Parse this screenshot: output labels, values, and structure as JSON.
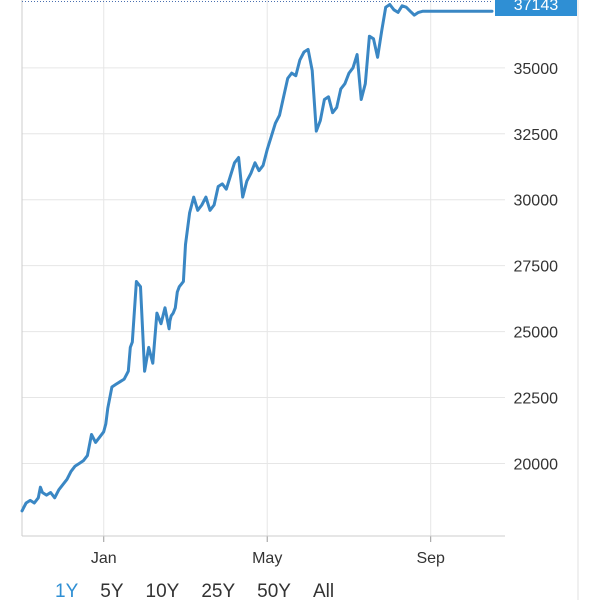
{
  "colors": {
    "line": "#3a87c4",
    "grid": "#e6e6e6",
    "badge": "#2f8fd4",
    "active": "#2f8fd4",
    "text": "#333333"
  },
  "range_buttons": [
    {
      "label": "1Y",
      "active": true
    },
    {
      "label": "5Y",
      "active": false
    },
    {
      "label": "10Y",
      "active": false
    },
    {
      "label": "25Y",
      "active": false
    },
    {
      "label": "50Y",
      "active": false
    },
    {
      "label": "All",
      "active": false
    }
  ],
  "chart_data": {
    "type": "line",
    "title": "",
    "xlabel": "",
    "ylabel": "",
    "grid": true,
    "legend": "none",
    "y_axis_side": "right",
    "ylim": [
      17250,
      37420
    ],
    "xlim": [
      0,
      11.5
    ],
    "y_ticks": [
      20000,
      22500,
      25000,
      27500,
      30000,
      32500,
      35000
    ],
    "x_ticks": [
      {
        "label": "Jan",
        "x": 2
      },
      {
        "label": "May",
        "x": 6
      },
      {
        "label": "Sep",
        "x": 10
      }
    ],
    "last_value_label": "37143",
    "series": [
      {
        "x": [
          0.0,
          0.1,
          0.2,
          0.3,
          0.4,
          0.45,
          0.5,
          0.6,
          0.7,
          0.8,
          0.9,
          1.0,
          1.1,
          1.2,
          1.3,
          1.4,
          1.5,
          1.6,
          1.7,
          1.8,
          1.9,
          2.0,
          2.05,
          2.1,
          2.2,
          2.3,
          2.4,
          2.5,
          2.6,
          2.65,
          2.7,
          2.8,
          2.9,
          3.0,
          3.1,
          3.2,
          3.3,
          3.4,
          3.5,
          3.6,
          3.62,
          3.65,
          3.7,
          3.75,
          3.8,
          3.85,
          3.9,
          3.95,
          4.0,
          4.1,
          4.2,
          4.3,
          4.4,
          4.5,
          4.6,
          4.7,
          4.8,
          4.9,
          5.0,
          5.1,
          5.2,
          5.3,
          5.4,
          5.5,
          5.6,
          5.7,
          5.8,
          5.9,
          6.0,
          6.1,
          6.2,
          6.3,
          6.4,
          6.5,
          6.6,
          6.7,
          6.8,
          6.9,
          7.0,
          7.1,
          7.2,
          7.3,
          7.4,
          7.5,
          7.6,
          7.7,
          7.8,
          7.9,
          8.0,
          8.1,
          8.2,
          8.3,
          8.4,
          8.5,
          8.6,
          8.7,
          8.8,
          8.9,
          9.0,
          9.1,
          9.2,
          9.3,
          9.4,
          9.5,
          9.6,
          9.7,
          9.8,
          9.9,
          10.0,
          10.1,
          10.2,
          10.3,
          10.4,
          10.5,
          10.6,
          10.7,
          10.8,
          10.85,
          10.9,
          11.0,
          11.1,
          11.2,
          11.25,
          11.3,
          11.4,
          11.5
        ],
        "values": [
          18200,
          18500,
          18600,
          18500,
          18700,
          19100,
          18900,
          18800,
          18900,
          18700,
          19000,
          19200,
          19400,
          19700,
          19900,
          20000,
          20100,
          20300,
          21100,
          20800,
          21000,
          21200,
          21500,
          22100,
          22900,
          23000,
          23100,
          23200,
          23500,
          24400,
          24600,
          26900,
          26700,
          23500,
          24400,
          23800,
          25700,
          25300,
          25900,
          25100,
          25400,
          25600,
          25700,
          25900,
          26500,
          26700,
          26800,
          26900,
          28300,
          29500,
          30100,
          29600,
          29800,
          30100,
          29600,
          29800,
          30500,
          30600,
          30400,
          30900,
          31400,
          31600,
          30100,
          30700,
          31000,
          31400,
          31100,
          31300,
          31900,
          32400,
          32900,
          33200,
          33900,
          34600,
          34800,
          34700,
          35300,
          35600,
          35700,
          34900,
          32600,
          33000,
          33800,
          33900,
          33300,
          33500,
          34200,
          34400,
          34800,
          35000,
          35500,
          33800,
          34400,
          36200,
          36100,
          35400,
          36400,
          37300,
          37400,
          37200,
          37100,
          37350,
          37300,
          37143,
          37000,
          37100,
          37143,
          37143,
          37143,
          37143,
          37143,
          37143,
          37143,
          37143,
          37143,
          37143,
          37143,
          37143,
          37143,
          37143,
          37143,
          37143,
          37143,
          37143,
          37143,
          37143
        ]
      }
    ]
  }
}
